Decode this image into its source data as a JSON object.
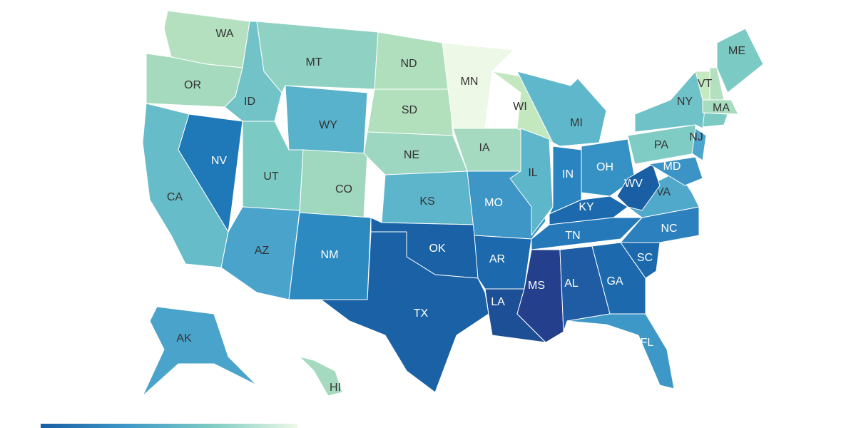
{
  "states": [
    {
      "label": "WA",
      "color": "#b5e0c0"
    },
    {
      "label": "OR",
      "color": "#a6dabe"
    },
    {
      "label": "CA",
      "color": "#66bcc8"
    },
    {
      "label": "NV",
      "color": "#1f78b8"
    },
    {
      "label": "ID",
      "color": "#72c3c8"
    },
    {
      "label": "MT",
      "color": "#8fd1c2"
    },
    {
      "label": "WY",
      "color": "#58b2cb"
    },
    {
      "label": "UT",
      "color": "#7ccac4"
    },
    {
      "label": "CO",
      "color": "#9fd7bf"
    },
    {
      "label": "AZ",
      "color": "#4aa3cb"
    },
    {
      "label": "NM",
      "color": "#2c8ac0"
    },
    {
      "label": "ND",
      "color": "#b0dfbd"
    },
    {
      "label": "SD",
      "color": "#b2e0bc"
    },
    {
      "label": "NE",
      "color": "#9dd6c1"
    },
    {
      "label": "KS",
      "color": "#5db5cb"
    },
    {
      "label": "OK",
      "color": "#1a62a5"
    },
    {
      "label": "TX",
      "color": "#1a62a5"
    },
    {
      "label": "MN",
      "color": "#eef8e7"
    },
    {
      "label": "IA",
      "color": "#a5dac0"
    },
    {
      "label": "MO",
      "color": "#3e96c6"
    },
    {
      "label": "AR",
      "color": "#1c6aad"
    },
    {
      "label": "LA",
      "color": "#1d4f96"
    },
    {
      "label": "WI",
      "color": "#c3e8bf"
    },
    {
      "label": "IL",
      "color": "#5eb6cb"
    },
    {
      "label": "MI",
      "color": "#5fb7cb"
    },
    {
      "label": "IN",
      "color": "#2a84bf"
    },
    {
      "label": "OH",
      "color": "#3691c5"
    },
    {
      "label": "KY",
      "color": "#1c6aad"
    },
    {
      "label": "TN",
      "color": "#2679b8"
    },
    {
      "label": "MS",
      "color": "#24408c"
    },
    {
      "label": "AL",
      "color": "#1f5ca3"
    },
    {
      "label": "GA",
      "color": "#1c6aad"
    },
    {
      "label": "FL",
      "color": "#3d98c7"
    },
    {
      "label": "SC",
      "color": "#1c6aad"
    },
    {
      "label": "NC",
      "color": "#2c80bd"
    },
    {
      "label": "VA",
      "color": "#50a8cb"
    },
    {
      "label": "WV",
      "color": "#1a5ea3"
    },
    {
      "label": "PA",
      "color": "#7fccc4"
    },
    {
      "label": "NY",
      "color": "#6fc2c8"
    },
    {
      "label": "NJ",
      "color": "#4ca5cb"
    },
    {
      "label": "MD",
      "color": "#3c94c6"
    },
    {
      "label": "VT",
      "color": "#c6e9c0"
    },
    {
      "label": "MA",
      "color": "#a9dcbf"
    },
    {
      "label": "ME",
      "color": "#7ccac4"
    },
    {
      "label": "AK",
      "color": "#4aa3cb"
    },
    {
      "label": "HI",
      "color": "#a5dac0"
    }
  ],
  "legend": {
    "colors": [
      "#1a5ea3",
      "#3d98c7",
      "#7fccc4",
      "#eef8e7"
    ]
  }
}
